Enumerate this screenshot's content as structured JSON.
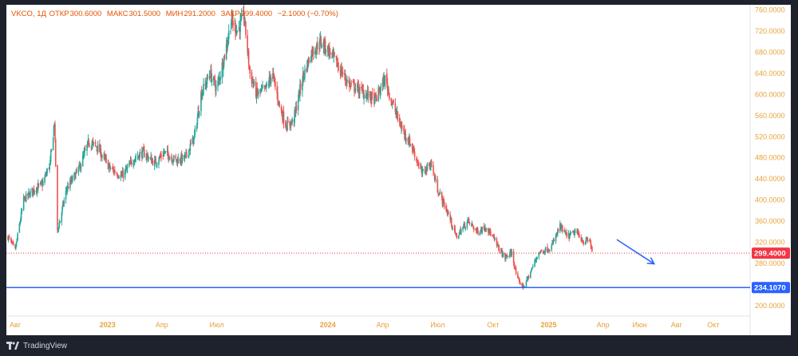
{
  "header": {
    "symbol": "VKCO, 1Д",
    "open_label": "ОТКР",
    "open_value": "300.6000",
    "high_label": "МАКС",
    "high_value": "301.5000",
    "low_label": "МИН",
    "low_value": "291.2000",
    "close_label": "ЗАКР",
    "close_value": "299.4000",
    "change": "−2.1000 (−0.70%)"
  },
  "footer": {
    "brand": "TradingView"
  },
  "colors": {
    "up": "#26a69a",
    "down": "#ef5350",
    "support_line": "#2962ff",
    "arrow": "#2962ff",
    "last_price": "#f23645",
    "label_text": "#e6a23c"
  },
  "chart_data": {
    "type": "candlestick",
    "ylim": [
      180,
      770
    ],
    "y_ticks": [
      "200.0000",
      "240.0000",
      "280.0000",
      "320.0000",
      "360.0000",
      "400.0000",
      "440.0000",
      "480.0000",
      "520.0000",
      "560.0000",
      "600.0000",
      "640.0000",
      "680.0000",
      "720.0000",
      "760.0000"
    ],
    "x_ticks": [
      "Авг",
      "2023",
      "Апр",
      "Июл",
      "2024",
      "Апр",
      "Июл",
      "Окт",
      "2025",
      "Апр",
      "Июн",
      "Авг",
      "Окт"
    ],
    "x_range": [
      "2022-07-20",
      "2025-12-01"
    ],
    "last_price": "299.4000",
    "horizontal_level": "234.1070",
    "arrow": {
      "from": [
        "2025-04-24",
        325
      ],
      "to": [
        "2025-06-25",
        279
      ]
    },
    "series": [
      {
        "close": [
          [
            "2022-07-20",
            330
          ],
          [
            "2022-08-01",
            305
          ],
          [
            "2022-08-15",
            400
          ],
          [
            "2022-09-01",
            420
          ],
          [
            "2022-09-15",
            430
          ],
          [
            "2022-09-28",
            470
          ],
          [
            "2022-10-05",
            550
          ],
          [
            "2022-10-10",
            340
          ],
          [
            "2022-10-25",
            420
          ],
          [
            "2022-11-15",
            460
          ],
          [
            "2022-12-01",
            510
          ],
          [
            "2022-12-15",
            500
          ],
          [
            "2023-01-05",
            460
          ],
          [
            "2023-01-25",
            445
          ],
          [
            "2023-02-15",
            480
          ],
          [
            "2023-03-01",
            490
          ],
          [
            "2023-03-20",
            470
          ],
          [
            "2023-04-05",
            490
          ],
          [
            "2023-04-25",
            475
          ],
          [
            "2023-05-10",
            480
          ],
          [
            "2023-05-25",
            520
          ],
          [
            "2023-06-05",
            600
          ],
          [
            "2023-06-20",
            640
          ],
          [
            "2023-07-01",
            610
          ],
          [
            "2023-07-15",
            680
          ],
          [
            "2023-07-25",
            740
          ],
          [
            "2023-08-05",
            720
          ],
          [
            "2023-08-15",
            750
          ],
          [
            "2023-08-25",
            640
          ],
          [
            "2023-09-05",
            600
          ],
          [
            "2023-09-20",
            610
          ],
          [
            "2023-10-01",
            640
          ],
          [
            "2023-10-15",
            570
          ],
          [
            "2023-10-25",
            540
          ],
          [
            "2023-11-05",
            550
          ],
          [
            "2023-11-20",
            630
          ],
          [
            "2023-12-05",
            680
          ],
          [
            "2023-12-20",
            700
          ],
          [
            "2024-01-05",
            680
          ],
          [
            "2024-01-20",
            650
          ],
          [
            "2024-02-05",
            620
          ],
          [
            "2024-02-20",
            610
          ],
          [
            "2024-03-05",
            600
          ],
          [
            "2024-03-20",
            590
          ],
          [
            "2024-04-05",
            630
          ],
          [
            "2024-04-15",
            590
          ],
          [
            "2024-05-01",
            540
          ],
          [
            "2024-05-20",
            500
          ],
          [
            "2024-06-05",
            450
          ],
          [
            "2024-06-20",
            470
          ],
          [
            "2024-07-01",
            420
          ],
          [
            "2024-07-20",
            370
          ],
          [
            "2024-08-01",
            330
          ],
          [
            "2024-08-20",
            360
          ],
          [
            "2024-09-05",
            340
          ],
          [
            "2024-09-20",
            350
          ],
          [
            "2024-10-05",
            320
          ],
          [
            "2024-10-20",
            290
          ],
          [
            "2024-11-01",
            300
          ],
          [
            "2024-11-10",
            250
          ],
          [
            "2024-11-20",
            235
          ],
          [
            "2024-12-01",
            260
          ],
          [
            "2024-12-15",
            300
          ],
          [
            "2025-01-05",
            310
          ],
          [
            "2025-01-20",
            350
          ],
          [
            "2025-02-01",
            330
          ],
          [
            "2025-02-15",
            340
          ],
          [
            "2025-03-01",
            320
          ],
          [
            "2025-03-10",
            325
          ],
          [
            "2025-03-15",
            299.4
          ]
        ]
      }
    ]
  }
}
